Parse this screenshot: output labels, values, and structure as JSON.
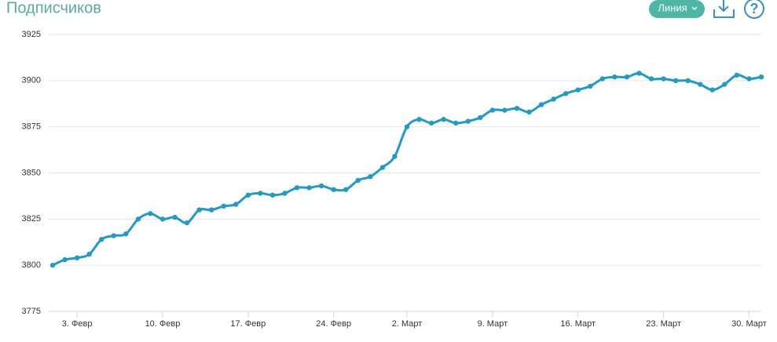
{
  "toolbar": {
    "chart_type": "Линия",
    "help": "?"
  },
  "chart_data": {
    "type": "line",
    "title": "Подписчиков",
    "color": "#1f9bc4",
    "grid": true,
    "categories": [
      null,
      null,
      "3. Февр",
      null,
      null,
      null,
      null,
      null,
      null,
      "10. Февр",
      null,
      null,
      null,
      null,
      null,
      null,
      "17. Февр",
      null,
      null,
      null,
      null,
      null,
      null,
      "24. Февр",
      null,
      null,
      null,
      null,
      null,
      "2. Март",
      null,
      null,
      null,
      null,
      null,
      null,
      "9. Март",
      null,
      null,
      null,
      null,
      null,
      null,
      "16. Март",
      null,
      null,
      null,
      null,
      null,
      null,
      "23. Март",
      null,
      null,
      null,
      null,
      null,
      null,
      "30. Март",
      null
    ],
    "values": [
      3800,
      3803,
      3804,
      3806,
      3814,
      3816,
      3817,
      3825,
      3828,
      3825,
      3826,
      3823,
      3830,
      3830,
      3832,
      3833,
      3838,
      3839,
      3838,
      3839,
      3842,
      3842,
      3843,
      3841,
      3841,
      3846,
      3848,
      3853,
      3859,
      3875,
      3879,
      3877,
      3879,
      3877,
      3878,
      3880,
      3884,
      3884,
      3885,
      3883,
      3887,
      3890,
      3893,
      3895,
      3897,
      3901,
      3902,
      3902,
      3904,
      3901,
      3901,
      3900,
      3900,
      3898,
      3895,
      3898,
      3903,
      3901,
      3902
    ],
    "ylim": [
      3775,
      3925
    ],
    "yticks": [
      3775,
      3800,
      3825,
      3850,
      3875,
      3900,
      3925
    ]
  }
}
